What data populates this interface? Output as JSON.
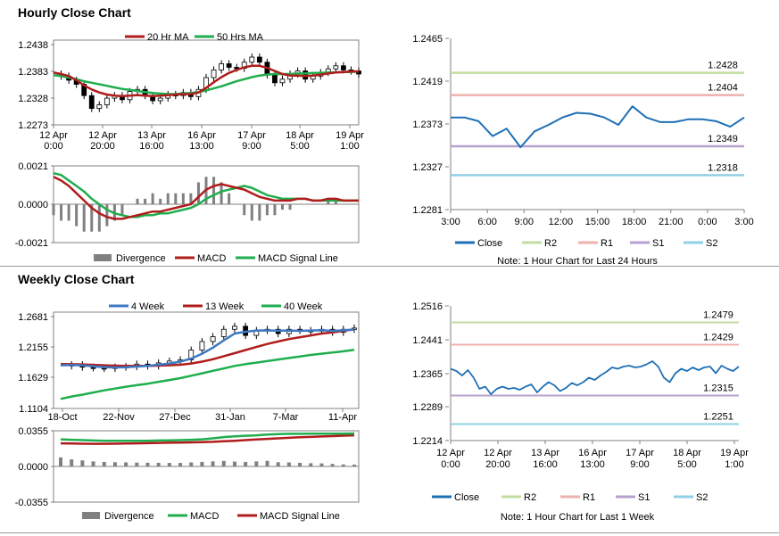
{
  "titles": {
    "hourly": "Hourly Close Chart",
    "weekly": "Weekly Close Chart"
  },
  "colors": {
    "red": "#b01c1c",
    "green": "#1fae4e",
    "blue": "#3d78c2",
    "dblue": "#1f6fb5",
    "r2": "#c3dca0",
    "r1": "#ecb2ad",
    "s1": "#b7a2cd",
    "s2": "#8fd0e4",
    "grey": "#808080"
  },
  "chart_data": [
    {
      "id": "hourly_price",
      "type": "line",
      "title": "",
      "legend": [
        "20 Hr MA",
        "50 Hrs MA"
      ],
      "yticks": [
        "1.2438",
        "1.2383",
        "1.2328",
        "1.2273"
      ],
      "ylim": [
        1.2273,
        1.2438
      ],
      "xticks": [
        [
          "12 Apr",
          "0:00"
        ],
        [
          "12 Apr",
          "20:00"
        ],
        [
          "13 Apr",
          "16:00"
        ],
        [
          "16 Apr",
          "13:00"
        ],
        [
          "17 Apr",
          "9:00"
        ],
        [
          "18 Apr",
          "5:00"
        ],
        [
          "19 Apr",
          "1:00"
        ]
      ],
      "close": [
        1.2372,
        1.2368,
        1.236,
        1.2352,
        1.233,
        1.2305,
        1.2312,
        1.2325,
        1.233,
        1.2322,
        1.2338,
        1.2342,
        1.233,
        1.232,
        1.2325,
        1.2332,
        1.233,
        1.2336,
        1.2328,
        1.2342,
        1.2365,
        1.238,
        1.2392,
        1.2385,
        1.2383,
        1.2395,
        1.2405,
        1.2395,
        1.237,
        1.2355,
        1.2362,
        1.2372,
        1.2378,
        1.2362,
        1.2368,
        1.2375,
        1.2382,
        1.2388,
        1.238,
        1.2378,
        1.2372
      ],
      "ma20": [
        1.2375,
        1.2372,
        1.2368,
        1.236,
        1.235,
        1.2342,
        1.2336,
        1.2332,
        1.233,
        1.2329,
        1.233,
        1.2331,
        1.233,
        1.2329,
        1.233,
        1.2331,
        1.2332,
        1.2333,
        1.2333,
        1.2336,
        1.2345,
        1.2356,
        1.2366,
        1.2374,
        1.238,
        1.2385,
        1.2388,
        1.2388,
        1.2384,
        1.2378,
        1.2372,
        1.2369,
        1.2369,
        1.2368,
        1.2369,
        1.2371,
        1.2373,
        1.2375,
        1.2376,
        1.2377,
        1.2377
      ],
      "ma50": [
        1.237,
        1.2368,
        1.2365,
        1.2362,
        1.2358,
        1.2355,
        1.2352,
        1.2349,
        1.2346,
        1.2343,
        1.2341,
        1.2339,
        1.2337,
        1.2335,
        1.2334,
        1.2333,
        1.2333,
        1.2334,
        1.2335,
        1.2337,
        1.234,
        1.2344,
        1.2348,
        1.2353,
        1.2358,
        1.2362,
        1.2366,
        1.2369,
        1.2371,
        1.2372,
        1.2372,
        1.2372,
        1.2373,
        1.2373,
        1.2374,
        1.2374,
        1.2375,
        1.2375,
        1.2376,
        1.2376,
        1.2377
      ]
    },
    {
      "id": "hourly_macd",
      "type": "line",
      "title": "",
      "legend": [
        "Divergence",
        "MACD",
        "MACD Signal Line"
      ],
      "yticks": [
        "0.0021",
        "0.0000",
        "-0.0021"
      ],
      "ylim": [
        -0.0021,
        0.0021
      ],
      "macd": [
        0.0015,
        0.0013,
        0.001,
        0.0006,
        0.0002,
        -0.0002,
        -0.0005,
        -0.0007,
        -0.0008,
        -0.0008,
        -0.0007,
        -0.0006,
        -0.0005,
        -0.0004,
        -0.0004,
        -0.0003,
        -0.0002,
        -0.0001,
        0.0,
        0.0004,
        0.0008,
        0.001,
        0.0011,
        0.001,
        0.0009,
        0.0008,
        0.0006,
        0.0004,
        0.0003,
        0.0002,
        0.0002,
        0.0002,
        0.0003,
        0.0003,
        0.0002,
        0.0002,
        0.0003,
        0.0003,
        0.0002,
        0.0002,
        0.0002
      ],
      "signal": [
        0.0017,
        0.0016,
        0.0013,
        0.001,
        0.0007,
        0.0003,
        0.0,
        -0.0003,
        -0.0005,
        -0.0006,
        -0.0007,
        -0.0007,
        -0.0006,
        -0.0006,
        -0.0005,
        -0.0005,
        -0.0004,
        -0.0003,
        -0.0002,
        0.0,
        0.0003,
        0.0005,
        0.0007,
        0.0008,
        0.0009,
        0.001,
        0.0009,
        0.0007,
        0.0005,
        0.0004,
        0.0003,
        0.0003,
        0.0003,
        0.0003,
        0.0002,
        0.0002,
        0.0002,
        0.0002,
        0.0002,
        0.0002,
        0.0002
      ]
    },
    {
      "id": "hourly_levels",
      "type": "line",
      "title": "",
      "yticks": [
        "1.2465",
        "1.2419",
        "1.2373",
        "1.2327",
        "1.2281"
      ],
      "ylim": [
        1.2281,
        1.2465
      ],
      "xticks": [
        "3:00",
        "6:00",
        "9:00",
        "12:00",
        "15:00",
        "18:00",
        "21:00",
        "0:00",
        "3:00"
      ],
      "close": [
        1.238,
        1.238,
        1.2376,
        1.236,
        1.2368,
        1.2348,
        1.2365,
        1.2372,
        1.238,
        1.2385,
        1.2384,
        1.238,
        1.2372,
        1.2392,
        1.238,
        1.2375,
        1.2375,
        1.2378,
        1.2378,
        1.2376,
        1.237,
        1.238
      ],
      "levels": [
        {
          "name": "R2",
          "value": 1.2428,
          "label": "1.2428"
        },
        {
          "name": "R1",
          "value": 1.2404,
          "label": "1.2404"
        },
        {
          "name": "S1",
          "value": 1.2349,
          "label": "1.2349"
        },
        {
          "name": "S2",
          "value": 1.2318,
          "label": "1.2318"
        }
      ],
      "legend": [
        "Close",
        "R2",
        "R1",
        "S1",
        "S2"
      ],
      "note": "Note: 1 Hour Chart for Last 24 Hours"
    },
    {
      "id": "weekly_price",
      "type": "line",
      "title": "",
      "legend": [
        "4 Week",
        "13 Week",
        "40 Week"
      ],
      "yticks": [
        "1.2681",
        "1.2155",
        "1.1629",
        "1.1104"
      ],
      "ylim": [
        1.1104,
        1.2681
      ],
      "xticks": [
        "18-Oct",
        "22-Nov",
        "27-Dec",
        "31-Jan",
        "7-Mar",
        "11-Apr"
      ],
      "close": [
        1.18,
        1.182,
        1.178,
        1.177,
        1.176,
        1.178,
        1.179,
        1.183,
        1.18,
        1.185,
        1.188,
        1.19,
        1.206,
        1.22,
        1.228,
        1.24,
        1.245,
        1.23,
        1.238,
        1.24,
        1.233,
        1.24,
        1.238,
        1.237,
        1.24,
        1.235,
        1.24,
        1.242
      ],
      "w4": [
        1.181,
        1.1815,
        1.181,
        1.1795,
        1.178,
        1.1775,
        1.1778,
        1.179,
        1.18,
        1.182,
        1.184,
        1.187,
        1.192,
        1.2,
        1.21,
        1.222,
        1.233,
        1.236,
        1.238,
        1.2382,
        1.2378,
        1.238,
        1.2375,
        1.238,
        1.2385,
        1.2375,
        1.2385,
        1.2395
      ],
      "w13": [
        1.183,
        1.1828,
        1.1825,
        1.1818,
        1.181,
        1.1805,
        1.1802,
        1.18,
        1.18,
        1.1805,
        1.1812,
        1.182,
        1.184,
        1.187,
        1.191,
        1.196,
        1.201,
        1.206,
        1.211,
        1.216,
        1.22,
        1.224,
        1.227,
        1.23,
        1.233,
        1.235,
        1.2375,
        1.24
      ],
      "w40": [
        1.126,
        1.13,
        1.133,
        1.1365,
        1.14,
        1.143,
        1.146,
        1.1485,
        1.151,
        1.154,
        1.157,
        1.16,
        1.164,
        1.168,
        1.172,
        1.176,
        1.18,
        1.183,
        1.1855,
        1.188,
        1.1905,
        1.193,
        1.1955,
        1.198,
        1.2,
        1.202,
        1.204,
        1.2065
      ]
    },
    {
      "id": "weekly_macd",
      "type": "line",
      "title": "",
      "legend": [
        "Divergence",
        "MACD",
        "MACD Signal Line"
      ],
      "yticks": [
        "0.0355",
        "0.0000",
        "-0.0355"
      ],
      "ylim": [
        -0.0355,
        0.0355
      ],
      "macd": [
        0.027,
        0.0265,
        0.0262,
        0.0258,
        0.0256,
        0.0255,
        0.0255,
        0.0255,
        0.0256,
        0.0258,
        0.026,
        0.0262,
        0.0265,
        0.027,
        0.028,
        0.0292,
        0.03,
        0.0305,
        0.031,
        0.0318,
        0.0322,
        0.0325,
        0.0325,
        0.0326,
        0.0327,
        0.0327,
        0.0327,
        0.0328
      ],
      "signal": [
        0.023,
        0.0228,
        0.0226,
        0.0225,
        0.0225,
        0.0226,
        0.0228,
        0.023,
        0.0232,
        0.0234,
        0.0236,
        0.0238,
        0.024,
        0.0242,
        0.0245,
        0.025,
        0.0256,
        0.0262,
        0.0268,
        0.0274,
        0.028,
        0.0285,
        0.029,
        0.0294,
        0.0298,
        0.0302,
        0.0306,
        0.031
      ],
      "divergence": [
        0.009,
        0.007,
        0.006,
        0.005,
        0.0045,
        0.0042,
        0.004,
        0.0038,
        0.0037,
        0.0036,
        0.0035,
        0.0035,
        0.004,
        0.0045,
        0.005,
        0.0055,
        0.0048,
        0.0045,
        0.005,
        0.0055,
        0.0042,
        0.004,
        0.0036,
        0.0032,
        0.003,
        0.0025,
        0.002,
        0.0018
      ]
    },
    {
      "id": "weekly_levels",
      "type": "line",
      "title": "",
      "yticks": [
        "1.2516",
        "1.2441",
        "1.2365",
        "1.2289",
        "1.2214"
      ],
      "ylim": [
        1.2214,
        1.2516
      ],
      "xticks": [
        [
          "12 Apr",
          "0:00"
        ],
        [
          "12 Apr",
          "20:00"
        ],
        [
          "13 Apr",
          "16:00"
        ],
        [
          "16 Apr",
          "13:00"
        ],
        [
          "17 Apr",
          "9:00"
        ],
        [
          "18 Apr",
          "5:00"
        ],
        [
          "19 Apr",
          "1:00"
        ]
      ],
      "close": [
        1.2375,
        1.237,
        1.236,
        1.2372,
        1.2355,
        1.233,
        1.2335,
        1.2318,
        1.233,
        1.2335,
        1.233,
        1.2332,
        1.2328,
        1.2335,
        1.234,
        1.2322,
        1.2335,
        1.2345,
        1.2338,
        1.2325,
        1.2332,
        1.2343,
        1.2338,
        1.2345,
        1.2355,
        1.235,
        1.236,
        1.2368,
        1.2378,
        1.2375,
        1.238,
        1.2382,
        1.2378,
        1.238,
        1.2385,
        1.2392,
        1.238,
        1.2355,
        1.2345,
        1.2365,
        1.2375,
        1.237,
        1.2378,
        1.2372,
        1.2378,
        1.238,
        1.2365,
        1.2382,
        1.2375,
        1.237,
        1.238
      ],
      "levels": [
        {
          "name": "R2",
          "value": 1.2479,
          "label": "1.2479"
        },
        {
          "name": "R1",
          "value": 1.2429,
          "label": "1.2429"
        },
        {
          "name": "S1",
          "value": 1.2315,
          "label": "1.2315"
        },
        {
          "name": "S2",
          "value": 1.2251,
          "label": "1.2251"
        }
      ],
      "legend": [
        "Close",
        "R2",
        "R1",
        "S1",
        "S2"
      ],
      "note": "Note: 1 Hour Chart for Last 1 Week"
    }
  ]
}
